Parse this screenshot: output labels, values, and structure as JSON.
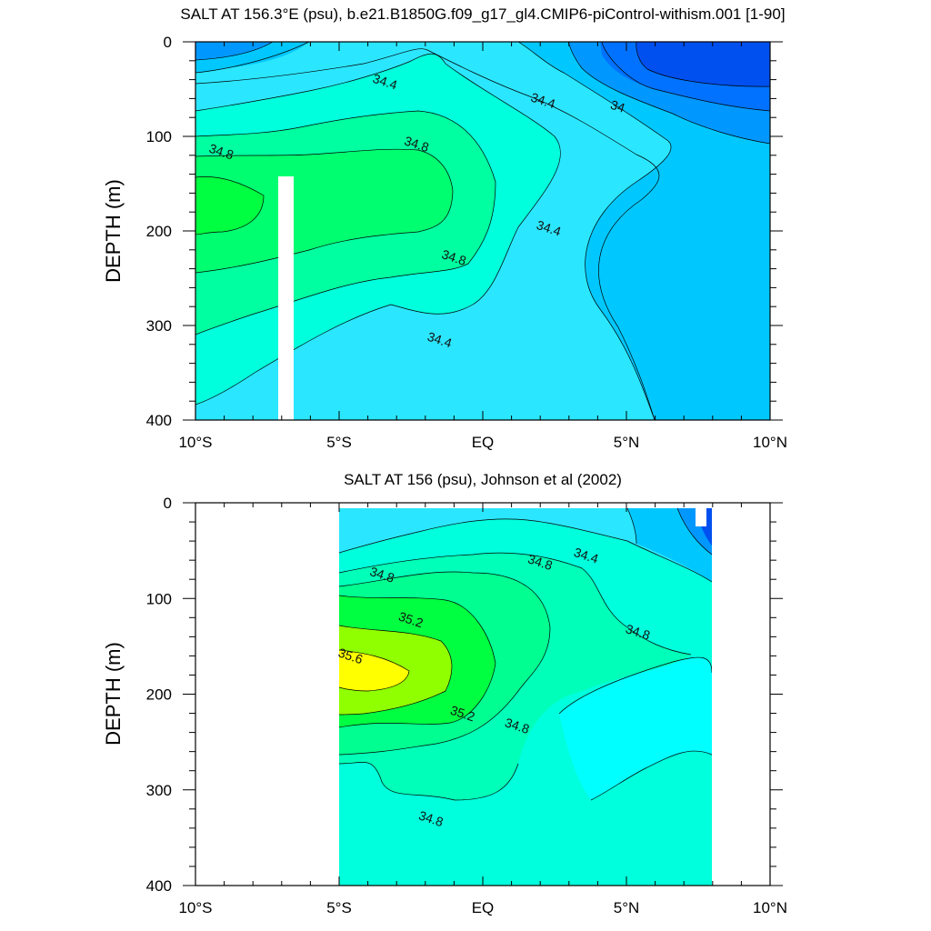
{
  "chart_data": [
    {
      "type": "contour",
      "title": "SALT AT 156.3°E (psu), b.e21.B1850G.f09_g17_gl4.CMIP6-piControl-withism.001 [1-90]",
      "ylabel": "DEPTH (m)",
      "xlabel": "",
      "xlim": [
        -10,
        10
      ],
      "ylim": [
        400,
        0
      ],
      "x_ticks": [
        -10,
        -5,
        0,
        5,
        10
      ],
      "x_tick_labels": [
        "10°S",
        "5°S",
        "EQ",
        "5°N",
        "10°N"
      ],
      "y_ticks": [
        0,
        100,
        200,
        300,
        400
      ],
      "contour_interval": 0.2,
      "contour_labels": [
        {
          "text": "34.4",
          "x": -3.4,
          "y": 42
        },
        {
          "text": "34.4",
          "x": 2.1,
          "y": 62
        },
        {
          "text": "34",
          "x": 4.7,
          "y": 68
        },
        {
          "text": "34.8",
          "x": -9.1,
          "y": 116
        },
        {
          "text": "34.8",
          "x": -2.3,
          "y": 108
        },
        {
          "text": "34.4",
          "x": 2.3,
          "y": 197
        },
        {
          "text": "34.8",
          "x": -1.0,
          "y": 228
        },
        {
          "text": "34.4",
          "x": -1.5,
          "y": 315
        }
      ]
    },
    {
      "type": "contour",
      "title": "SALT AT 156 (psu), Johnson et al (2002)",
      "ylabel": "DEPTH (m)",
      "xlabel": "",
      "xlim": [
        -10,
        10
      ],
      "ylim": [
        400,
        0
      ],
      "data_xrange": [
        -5,
        8
      ],
      "x_ticks": [
        -10,
        -5,
        0,
        5,
        10
      ],
      "x_tick_labels": [
        "10°S",
        "5°S",
        "EQ",
        "5°N",
        "10°N"
      ],
      "y_ticks": [
        0,
        100,
        200,
        300,
        400
      ],
      "contour_interval": 0.2,
      "contour_labels": [
        {
          "text": "34.4",
          "x": 3.6,
          "y": 55
        },
        {
          "text": "34.8",
          "x": -3.5,
          "y": 75
        },
        {
          "text": "34.8",
          "x": 2.0,
          "y": 62
        },
        {
          "text": "35.2",
          "x": -2.5,
          "y": 122
        },
        {
          "text": "34.8",
          "x": 5.4,
          "y": 135
        },
        {
          "text": "35.6",
          "x": -4.6,
          "y": 160
        },
        {
          "text": "35.2",
          "x": -0.7,
          "y": 220
        },
        {
          "text": "34.8",
          "x": 1.2,
          "y": 233
        },
        {
          "text": "34.8",
          "x": -1.8,
          "y": 330
        }
      ]
    }
  ]
}
